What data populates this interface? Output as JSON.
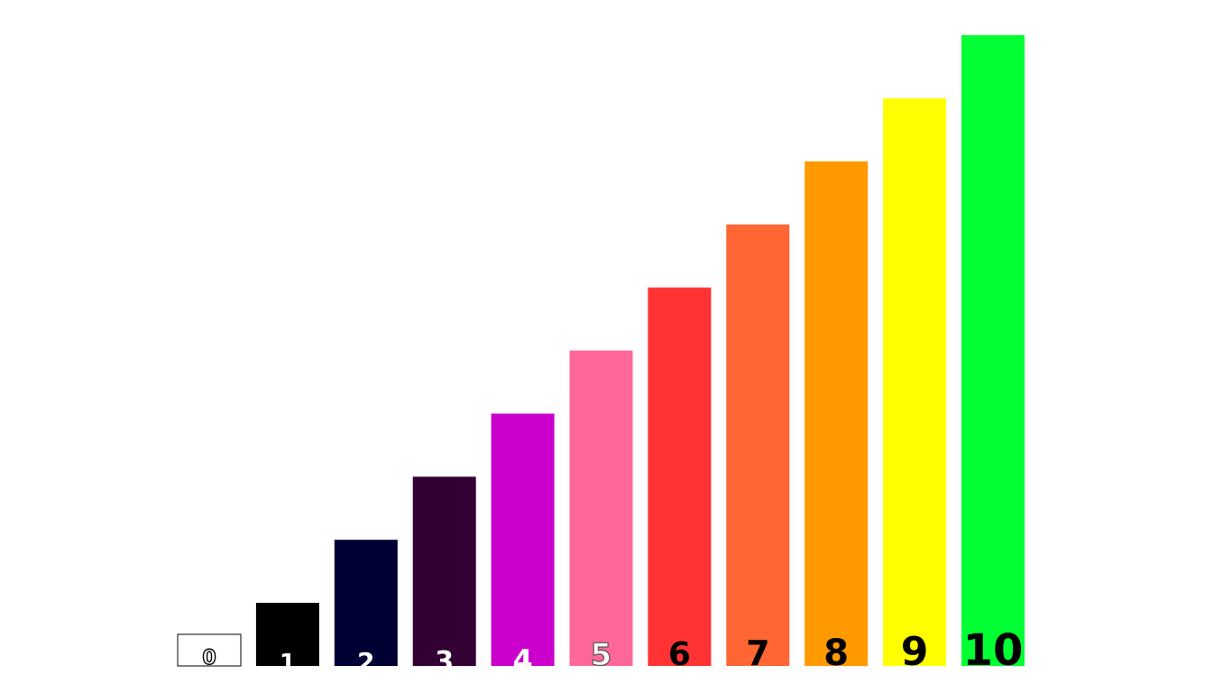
{
  "chart_data": {
    "type": "bar",
    "title": "",
    "xlabel": "",
    "ylabel": "",
    "ylim": [
      0,
      10
    ],
    "grid": false,
    "legend": "none",
    "categories": [
      "0",
      "1",
      "2",
      "3",
      "4",
      "5",
      "6",
      "7",
      "8",
      "9",
      "10"
    ],
    "values": [
      0.5,
      1,
      2,
      3,
      4,
      5,
      6,
      7,
      8,
      9,
      10
    ],
    "colors": [
      "#ffffff",
      "#000000",
      "#000033",
      "#330033",
      "#cc00cc",
      "#ff6699",
      "#ff3333",
      "#ff6633",
      "#ff9900",
      "#ffff00",
      "#00ff33"
    ],
    "label_colors": [
      "#ffffff",
      "#ffffff",
      "#ffffff",
      "#ffffff",
      "#ffffff",
      "#ff6699",
      "#000000",
      "#000000",
      "#000000",
      "#000000",
      "#000000"
    ],
    "label_outline_colors": [
      "#000000",
      "none",
      "none",
      "none",
      "none",
      "#555555",
      "none",
      "none",
      "none",
      "none",
      "none"
    ],
    "bar_outline_colors": [
      "#000000",
      "none",
      "none",
      "none",
      "none",
      "none",
      "none",
      "none",
      "none",
      "none",
      "none"
    ]
  }
}
